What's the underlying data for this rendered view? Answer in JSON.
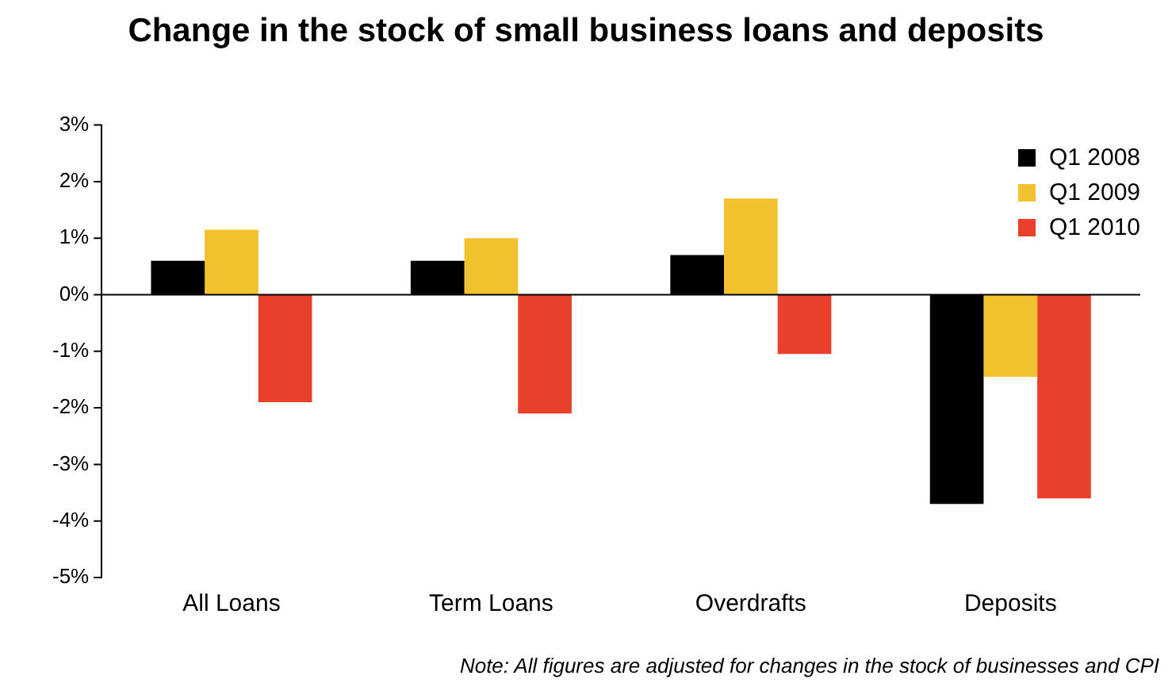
{
  "chart_data": {
    "type": "bar",
    "title": "Change in the stock of small business loans and deposits",
    "categories": [
      "All Loans",
      "Term Loans",
      "Overdrafts",
      "Deposits"
    ],
    "series": [
      {
        "name": "Q1 2008",
        "color": "#000000",
        "values": [
          0.6,
          0.6,
          0.7,
          -3.7
        ]
      },
      {
        "name": "Q1 2009",
        "color": "#f2c12e",
        "values": [
          1.15,
          1.0,
          1.7,
          -1.45
        ]
      },
      {
        "name": "Q1 2010",
        "color": "#e8402a",
        "values": [
          -1.9,
          -2.1,
          -1.05,
          -3.6
        ]
      }
    ],
    "ylim": [
      -5,
      3
    ],
    "yticks": [
      {
        "value": -5,
        "label": "-5%"
      },
      {
        "value": -4,
        "label": "-4%"
      },
      {
        "value": -3,
        "label": "-3%"
      },
      {
        "value": -2,
        "label": "-2%"
      },
      {
        "value": -1,
        "label": "-1%"
      },
      {
        "value": 0,
        "label": "0%"
      },
      {
        "value": 1,
        "label": "1%"
      },
      {
        "value": 2,
        "label": "2%"
      },
      {
        "value": 3,
        "label": "3%"
      }
    ],
    "grid": false,
    "legend": "top right",
    "ref_lines": [
      {
        "axis": "y",
        "value": 0,
        "color": "#000000"
      }
    ],
    "annotations": [
      "Note: All figures are adjusted for changes in the stock of businesses and CPI"
    ]
  }
}
